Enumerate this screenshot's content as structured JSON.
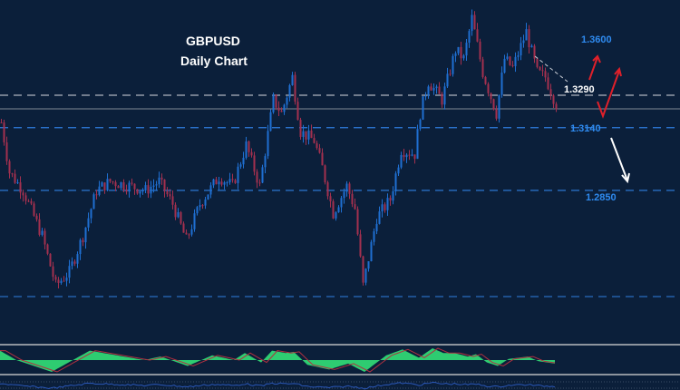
{
  "header": {
    "symbol": "GBPUSD",
    "timeframe": "Daily Chart"
  },
  "colors": {
    "background": "#0b1f3a",
    "bull": "#1f6fd1",
    "bear": "#a3304f",
    "level_blue": "#2f7fe0",
    "level_gray": "#9aa3ad",
    "oscillator": "#2ecc71",
    "signal": "#b03040"
  },
  "chart_data": {
    "type": "candlestick",
    "title": "GBPUSD Daily Chart",
    "ylim": [
      1.2179,
      1.373
    ],
    "bars": 205,
    "anchors_bar": [
      0,
      3,
      8,
      15,
      20,
      25,
      30,
      35,
      40,
      47,
      53,
      58,
      63,
      68,
      73,
      80,
      85,
      90,
      95,
      100,
      103,
      107,
      110,
      115,
      118,
      122,
      127,
      130,
      133,
      138,
      143,
      147,
      152,
      154,
      157,
      162,
      167,
      170,
      173,
      177,
      182,
      185,
      188,
      193,
      197,
      200,
      204
    ],
    "anchors_close": [
      1.3164,
      1.2934,
      1.285,
      1.264,
      1.241,
      1.2473,
      1.264,
      1.285,
      1.2892,
      1.2871,
      1.285,
      1.2892,
      1.2787,
      1.2619,
      1.2787,
      1.2913,
      1.2871,
      1.3059,
      1.2871,
      1.3269,
      1.3206,
      1.3374,
      1.3122,
      1.308,
      1.2955,
      1.2745,
      1.2871,
      1.2766,
      1.241,
      1.2724,
      1.2808,
      1.3038,
      1.3018,
      1.3206,
      1.3353,
      1.3269,
      1.3499,
      1.3458,
      1.3646,
      1.3395,
      1.3206,
      1.3458,
      1.3416,
      1.3583,
      1.3395,
      1.3374,
      1.3248
    ],
    "levels": [
      {
        "price": 1.36,
        "label": "1.3600",
        "style": "label"
      },
      {
        "price": 1.329,
        "label": "1.3290",
        "style": "dashed-gray"
      },
      {
        "price": 1.314,
        "label": "1.3140",
        "style": "dashed-blue"
      },
      {
        "price": 1.285,
        "label": "1.2850",
        "style": "dashed-blue"
      }
    ],
    "unlabeled_levels": [
      {
        "price": 1.3227,
        "style": "solid-gray"
      },
      {
        "price": 1.2359,
        "style": "dashed-blue"
      }
    ],
    "oscillator": {
      "range": [
        -1,
        1
      ],
      "anchors_bar": [
        0,
        6,
        19,
        33,
        53,
        59,
        69,
        78,
        86,
        90,
        96,
        100,
        105,
        108,
        113,
        121,
        128,
        134,
        142,
        148,
        154,
        159,
        163,
        167,
        172,
        175,
        179,
        183,
        187,
        194,
        198,
        204
      ],
      "values": [
        0.8,
        0,
        -1,
        0.8,
        0,
        0.3,
        -0.5,
        0.4,
        0,
        0.6,
        -0.2,
        0.8,
        0.6,
        0.7,
        -0.4,
        -0.8,
        -0.3,
        -1,
        0.4,
        0.9,
        0.2,
        1,
        0.6,
        0.6,
        0.3,
        0.5,
        -0.2,
        -0.5,
        0.1,
        0.3,
        -0.1,
        -0.3
      ]
    }
  }
}
